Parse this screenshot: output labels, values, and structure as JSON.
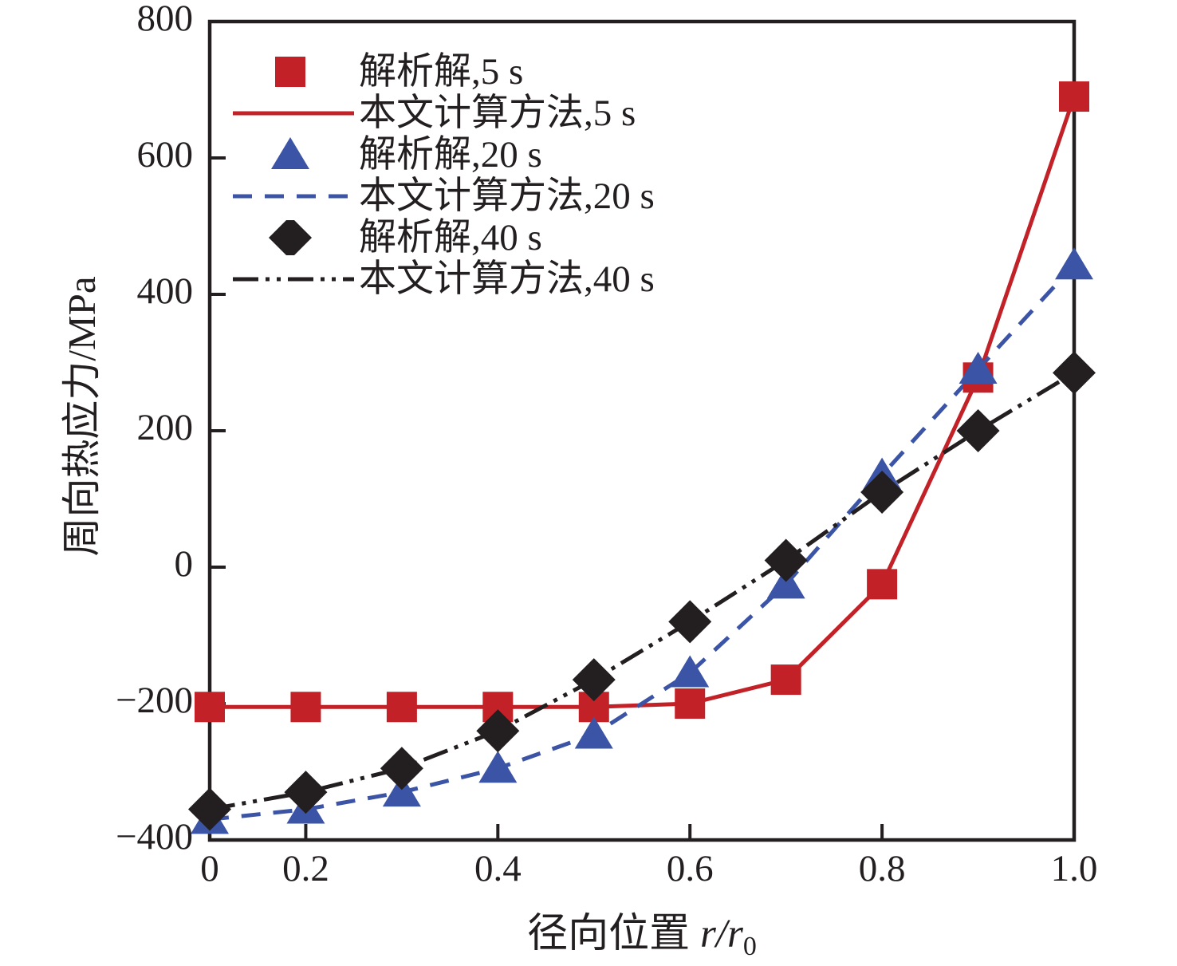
{
  "figure": {
    "background": "#ffffff",
    "frame_color": "#231f20"
  },
  "chart_data": {
    "type": "line",
    "title": "",
    "xlabel": {
      "text": "径向位置 ",
      "variable": "r/r",
      "subscript": "0"
    },
    "ylabel": "周向热应力/MPa",
    "x_tick_labels": [
      "0",
      "0.2",
      "0.4",
      "0.6",
      "0.8",
      "1.0"
    ],
    "x_tick_values": [
      0,
      0.2,
      0.4,
      0.6,
      0.8,
      1.0
    ],
    "y_tick_labels": [
      "800",
      "600",
      "400",
      "200",
      "0",
      "−200",
      "−400"
    ],
    "y_tick_values": [
      800,
      600,
      400,
      200,
      0,
      -200,
      -400
    ],
    "x_scale": {
      "min": 0.1,
      "max": 1.0,
      "clamp_zero_to_min": true,
      "note": "the '0' tick sits at the left axis edge; ticks 0.2-1.0 are linear"
    },
    "y_scale": {
      "min": -400,
      "max": 800
    },
    "grid": false,
    "legend_position": "upper-left-inside",
    "x": [
      0,
      0.2,
      0.3,
      0.4,
      0.5,
      0.6,
      0.7,
      0.8,
      0.9,
      1.0
    ],
    "series": [
      {
        "name": "解析解,5 s",
        "kind": "markers",
        "marker": "square",
        "color": "#c22127",
        "values": [
          -205,
          -205,
          -205,
          -205,
          -205,
          -200,
          -165,
          -25,
          278,
          690
        ]
      },
      {
        "name": "本文计算方法,5 s",
        "kind": "line",
        "dash": "solid",
        "color": "#c22127",
        "values": [
          -205,
          -205,
          -205,
          -205,
          -205,
          -200,
          -165,
          -25,
          278,
          690
        ]
      },
      {
        "name": "解析解,20 s",
        "kind": "markers",
        "marker": "triangle",
        "color": "#3b54a5",
        "values": [
          -370,
          -355,
          -330,
          -295,
          -245,
          -155,
          -25,
          135,
          290,
          443
        ]
      },
      {
        "name": "本文计算方法,20 s",
        "kind": "line",
        "dash": "dashed",
        "color": "#3b54a5",
        "values": [
          -370,
          -355,
          -330,
          -295,
          -245,
          -155,
          -25,
          135,
          290,
          443
        ]
      },
      {
        "name": "解析解,40 s",
        "kind": "markers",
        "marker": "diamond",
        "color": "#231f20",
        "values": [
          -355,
          -330,
          -295,
          -240,
          -165,
          -80,
          10,
          110,
          200,
          285
        ]
      },
      {
        "name": "本文计算方法,40 s",
        "kind": "line",
        "dash": "dash-dot-dot",
        "color": "#231f20",
        "values": [
          -355,
          -330,
          -295,
          -240,
          -165,
          -80,
          10,
          110,
          200,
          285
        ]
      }
    ]
  }
}
